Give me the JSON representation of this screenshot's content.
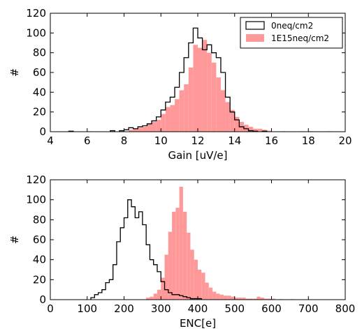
{
  "chart_data": [
    {
      "type": "histogram",
      "xlabel": "Gain [uV/e]",
      "ylabel": "#",
      "xlim": [
        4,
        20
      ],
      "ylim": [
        0,
        120
      ],
      "xticks": [
        "4",
        "6",
        "8",
        "10",
        "12",
        "14",
        "16",
        "18",
        "20"
      ],
      "yticks": [
        "0",
        "20",
        "40",
        "60",
        "80",
        "100",
        "120"
      ],
      "legend_position": "top-right",
      "series": [
        {
          "name": "0neq/cm2",
          "style": "step",
          "color": "#000000",
          "bin_width": 0.25,
          "bins": [
            [
              5.0,
              0.5
            ],
            [
              7.25,
              1
            ],
            [
              7.75,
              1
            ],
            [
              8.0,
              2
            ],
            [
              8.25,
              4
            ],
            [
              8.5,
              3
            ],
            [
              8.75,
              5
            ],
            [
              9.0,
              6
            ],
            [
              9.25,
              8
            ],
            [
              9.5,
              11
            ],
            [
              9.75,
              15
            ],
            [
              10.0,
              22
            ],
            [
              10.25,
              30
            ],
            [
              10.5,
              35
            ],
            [
              10.75,
              45
            ],
            [
              11.0,
              60
            ],
            [
              11.25,
              75
            ],
            [
              11.5,
              90
            ],
            [
              11.75,
              105
            ],
            [
              12.0,
              95
            ],
            [
              12.25,
              83
            ],
            [
              12.5,
              88
            ],
            [
              12.75,
              80
            ],
            [
              13.0,
              75
            ],
            [
              13.25,
              60
            ],
            [
              13.5,
              35
            ],
            [
              13.75,
              20
            ],
            [
              14.0,
              12
            ],
            [
              14.25,
              5
            ],
            [
              14.5,
              3
            ],
            [
              14.75,
              1
            ],
            [
              15.0,
              0.5
            ],
            [
              15.5,
              0.5
            ]
          ]
        },
        {
          "name": "1E15neq/cm2",
          "style": "filled",
          "color": "#ff9999",
          "bin_width": 0.25,
          "bins": [
            [
              5.0,
              0.5
            ],
            [
              6.0,
              0.5
            ],
            [
              8.25,
              2
            ],
            [
              8.5,
              3
            ],
            [
              8.75,
              4
            ],
            [
              9.0,
              5
            ],
            [
              9.25,
              8
            ],
            [
              9.5,
              10
            ],
            [
              9.75,
              12
            ],
            [
              10.0,
              18
            ],
            [
              10.25,
              25
            ],
            [
              10.5,
              27
            ],
            [
              10.75,
              33
            ],
            [
              11.0,
              42
            ],
            [
              11.25,
              48
            ],
            [
              11.5,
              65
            ],
            [
              11.75,
              88
            ],
            [
              12.0,
              85
            ],
            [
              12.25,
              93
            ],
            [
              12.5,
              80
            ],
            [
              12.75,
              70
            ],
            [
              13.0,
              55
            ],
            [
              13.25,
              42
            ],
            [
              13.5,
              30
            ],
            [
              13.75,
              22
            ],
            [
              14.0,
              15
            ],
            [
              14.25,
              10
            ],
            [
              14.5,
              7
            ],
            [
              14.75,
              5
            ],
            [
              15.0,
              3
            ],
            [
              15.25,
              3
            ],
            [
              15.5,
              2
            ],
            [
              15.75,
              1
            ],
            [
              16.5,
              0.5
            ],
            [
              17.5,
              0.5
            ],
            [
              18.0,
              0.5
            ],
            [
              19.0,
              0.5
            ]
          ]
        }
      ]
    },
    {
      "type": "histogram",
      "xlabel": "ENC[e]",
      "ylabel": "#",
      "xlim": [
        0,
        800
      ],
      "ylim": [
        0,
        120
      ],
      "xticks": [
        "0",
        "100",
        "200",
        "300",
        "400",
        "500",
        "600",
        "700",
        "800"
      ],
      "yticks": [
        "0",
        "20",
        "40",
        "60",
        "80",
        "100",
        "120"
      ],
      "series": [
        {
          "name": "0neq/cm2",
          "style": "step",
          "color": "#000000",
          "bin_width": 10,
          "bins": [
            [
              110,
              2
            ],
            [
              120,
              5
            ],
            [
              130,
              7
            ],
            [
              140,
              10
            ],
            [
              150,
              17
            ],
            [
              160,
              20
            ],
            [
              170,
              35
            ],
            [
              180,
              58
            ],
            [
              190,
              72
            ],
            [
              200,
              82
            ],
            [
              210,
              100
            ],
            [
              220,
              93
            ],
            [
              230,
              82
            ],
            [
              240,
              88
            ],
            [
              250,
              75
            ],
            [
              260,
              55
            ],
            [
              270,
              40
            ],
            [
              280,
              35
            ],
            [
              290,
              28
            ],
            [
              300,
              18
            ],
            [
              310,
              10
            ],
            [
              320,
              7
            ],
            [
              330,
              5
            ],
            [
              340,
              5
            ],
            [
              350,
              4
            ],
            [
              360,
              3
            ],
            [
              370,
              2
            ],
            [
              380,
              1
            ],
            [
              390,
              1
            ],
            [
              400,
              1
            ]
          ]
        },
        {
          "name": "1E15neq/cm2",
          "style": "filled",
          "color": "#ff9999",
          "bin_width": 10,
          "bins": [
            [
              260,
              2
            ],
            [
              270,
              3
            ],
            [
              280,
              6
            ],
            [
              290,
              10
            ],
            [
              300,
              22
            ],
            [
              310,
              45
            ],
            [
              320,
              68
            ],
            [
              330,
              88
            ],
            [
              340,
              92
            ],
            [
              350,
              113
            ],
            [
              360,
              88
            ],
            [
              370,
              67
            ],
            [
              380,
              50
            ],
            [
              390,
              40
            ],
            [
              400,
              30
            ],
            [
              410,
              27
            ],
            [
              420,
              17
            ],
            [
              430,
              12
            ],
            [
              440,
              8
            ],
            [
              450,
              6
            ],
            [
              460,
              5
            ],
            [
              470,
              4
            ],
            [
              480,
              4
            ],
            [
              490,
              3
            ],
            [
              500,
              2
            ],
            [
              510,
              2
            ],
            [
              520,
              2
            ],
            [
              530,
              1
            ],
            [
              540,
              1
            ],
            [
              550,
              1
            ],
            [
              560,
              3
            ],
            [
              570,
              2
            ],
            [
              580,
              1
            ],
            [
              590,
              1
            ],
            [
              600,
              1
            ],
            [
              620,
              0.5
            ],
            [
              650,
              0.5
            ]
          ]
        }
      ]
    }
  ]
}
